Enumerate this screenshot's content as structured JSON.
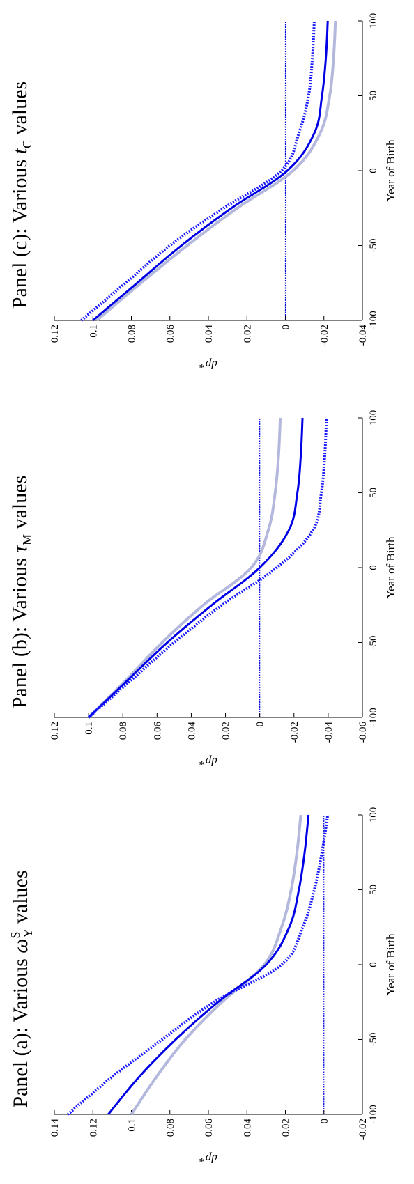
{
  "panels": [
    {
      "title_prefix": "Panel (a):  Various ",
      "title_symbol": "ω",
      "title_sub": "Y",
      "title_sup": "S",
      "title_suffix": " values"
    },
    {
      "title_prefix": "Panel (b):  Various ",
      "title_symbol": "τ",
      "title_sub": "M",
      "title_sup": "",
      "title_suffix": " values"
    },
    {
      "title_prefix": "Panel (c):  Various ",
      "title_symbol": "t",
      "title_sub": "C",
      "title_sup": "",
      "title_suffix": " values"
    }
  ],
  "colors": {
    "solid": "#0000e6",
    "dotted": "#1a1aff",
    "light": "#b4b8dc",
    "zero_line": "#0000e6"
  },
  "chart_data": [
    {
      "type": "line",
      "xlabel": "Year of Birth",
      "ylabel": "dp*",
      "xlim": [
        -100,
        100
      ],
      "ylim": [
        -0.02,
        0.14
      ],
      "xticks": [
        -100,
        -50,
        0,
        50,
        100
      ],
      "xtick_labels": [
        "-100",
        "-50",
        "0",
        "50",
        "100"
      ],
      "yticks": [
        -0.02,
        0,
        0.02,
        0.04,
        0.06,
        0.08,
        0.1,
        0.12,
        0.14
      ],
      "ytick_labels": [
        "-0.02",
        "0",
        "0.02",
        "0.04",
        "0.06",
        "0.08",
        "0.1",
        "0.12",
        "0.14"
      ],
      "x": [
        -100,
        -75,
        -50,
        -25,
        0,
        25,
        50,
        75,
        100
      ],
      "series": [
        {
          "style": "light",
          "values": [
            0.1,
            0.087,
            0.072,
            0.053,
            0.031,
            0.022,
            0.017,
            0.014,
            0.012
          ]
        },
        {
          "style": "solid",
          "values": [
            0.112,
            0.096,
            0.077,
            0.055,
            0.03,
            0.018,
            0.013,
            0.01,
            0.008
          ]
        },
        {
          "style": "dotted",
          "values": [
            0.133,
            0.11,
            0.084,
            0.057,
            0.022,
            0.011,
            0.005,
            0.001,
            -0.002
          ]
        }
      ]
    },
    {
      "type": "line",
      "xlabel": "Year of Birth",
      "ylabel": "dp*",
      "xlim": [
        -100,
        100
      ],
      "ylim": [
        -0.06,
        0.12
      ],
      "xticks": [
        -100,
        -50,
        0,
        50,
        100
      ],
      "xtick_labels": [
        "-100",
        "-50",
        "0",
        "50",
        "100"
      ],
      "yticks": [
        -0.06,
        -0.04,
        -0.02,
        0,
        0.02,
        0.04,
        0.06,
        0.08,
        0.1,
        0.12
      ],
      "ytick_labels": [
        "-0.06",
        "-0.04",
        "-0.02",
        "0",
        "0.02",
        "0.04",
        "0.06",
        "0.08",
        "0.1",
        "0.12"
      ],
      "x": [
        -100,
        -75,
        -50,
        -25,
        0,
        25,
        50,
        75,
        100
      ],
      "series": [
        {
          "style": "light",
          "values": [
            0.1,
            0.078,
            0.057,
            0.033,
            0.005,
            -0.005,
            -0.009,
            -0.011,
            -0.012
          ]
        },
        {
          "style": "solid",
          "values": [
            0.1,
            0.077,
            0.054,
            0.028,
            0.0,
            -0.017,
            -0.022,
            -0.024,
            -0.025
          ]
        },
        {
          "style": "dotted",
          "values": [
            0.1,
            0.075,
            0.05,
            0.022,
            -0.01,
            -0.031,
            -0.036,
            -0.038,
            -0.039
          ]
        }
      ]
    },
    {
      "type": "line",
      "xlabel": "Year of Birth",
      "ylabel": "dp*",
      "xlim": [
        -100,
        100
      ],
      "ylim": [
        -0.04,
        0.12
      ],
      "xticks": [
        -100,
        -50,
        0,
        50,
        100
      ],
      "xtick_labels": [
        "-100",
        "-50",
        "0",
        "50",
        "100"
      ],
      "yticks": [
        -0.04,
        -0.02,
        0,
        0.02,
        0.04,
        0.06,
        0.08,
        0.1,
        0.12
      ],
      "ytick_labels": [
        "-0.04",
        "-0.02",
        "0",
        "0.02",
        "0.04",
        "0.06",
        "0.08",
        "0.1",
        "0.12"
      ],
      "x": [
        -100,
        -75,
        -50,
        -25,
        0,
        25,
        50,
        75,
        100
      ],
      "series": [
        {
          "style": "light",
          "values": [
            0.098,
            0.075,
            0.051,
            0.025,
            -0.004,
            -0.018,
            -0.023,
            -0.025,
            -0.026
          ]
        },
        {
          "style": "solid",
          "values": [
            0.1,
            0.077,
            0.054,
            0.028,
            -0.001,
            -0.015,
            -0.019,
            -0.021,
            -0.022
          ]
        },
        {
          "style": "dotted",
          "values": [
            0.106,
            0.083,
            0.06,
            0.032,
            0.002,
            -0.007,
            -0.012,
            -0.014,
            -0.015
          ]
        }
      ]
    }
  ]
}
